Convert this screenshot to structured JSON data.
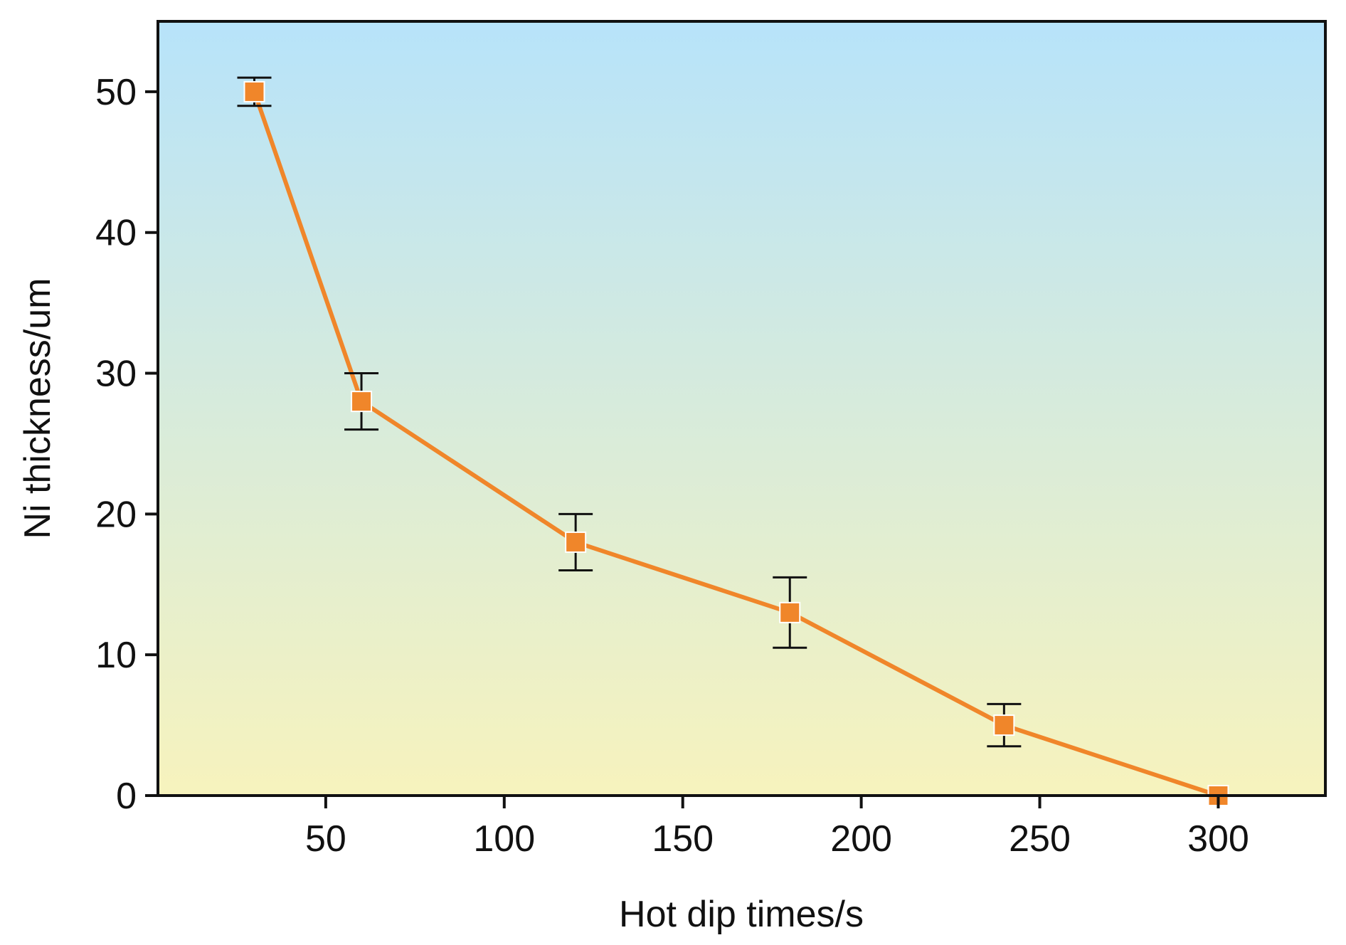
{
  "chart_data": {
    "type": "line",
    "xlabel": "Hot dip times/s",
    "ylabel": "Ni thickness/um",
    "xlim": [
      3,
      330
    ],
    "ylim": [
      0,
      55
    ],
    "xticks": [
      50,
      100,
      150,
      200,
      250,
      300
    ],
    "yticks": [
      0,
      10,
      20,
      30,
      40,
      50
    ],
    "grid": false,
    "legend": "none",
    "background_gradient": [
      "#b7e3fa",
      "#f7f3bd"
    ],
    "series": [
      {
        "color": "#f0862a",
        "marker": "square",
        "points": [
          {
            "x": 30,
            "y": 50,
            "err": 1
          },
          {
            "x": 60,
            "y": 28,
            "err": 2
          },
          {
            "x": 120,
            "y": 18,
            "err": 2
          },
          {
            "x": 180,
            "y": 13,
            "err": 2.5
          },
          {
            "x": 240,
            "y": 5,
            "err": 1.5
          },
          {
            "x": 300,
            "y": 0,
            "err": 0
          }
        ]
      }
    ]
  }
}
